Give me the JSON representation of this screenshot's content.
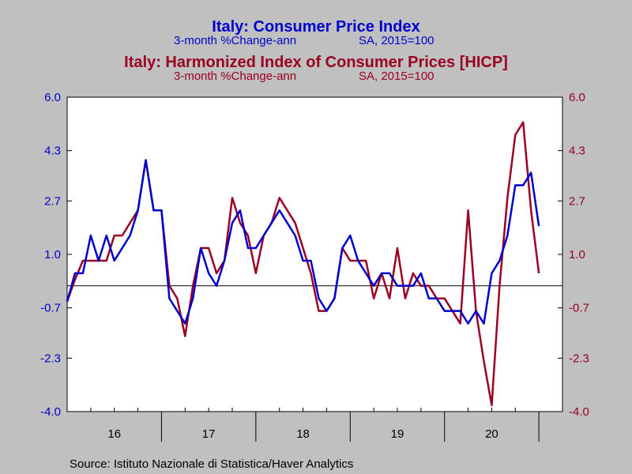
{
  "chart_data": {
    "type": "line",
    "titles": [
      {
        "title": "Italy: Consumer Price Index",
        "subtitle_left": "3-month %Change-ann",
        "subtitle_right": "SA, 2015=100",
        "color": "#0000cc"
      },
      {
        "title": "Italy: Harmonized Index of Consumer Prices [HICP]",
        "subtitle_left": "3-month %Change-ann",
        "subtitle_right": "SA, 2015=100",
        "color": "#990022"
      }
    ],
    "source": "Source:  Istituto Nazionale di Statistica/Haver Analytics",
    "ylim": [
      -4.0,
      6.0
    ],
    "y_ticks": [
      "6.0",
      "4.3",
      "2.7",
      "1.0",
      "-0.7",
      "-2.3",
      "-4.0"
    ],
    "zero_line": 0,
    "x_start": "2016-01",
    "x_end": "2021-03",
    "x_labels": [
      "16",
      "17",
      "18",
      "19",
      "20"
    ],
    "grid": false,
    "legend": "none",
    "series": [
      {
        "color": "#0000cc",
        "axis": "left",
        "values": [
          -0.5,
          0.4,
          0.4,
          1.6,
          0.8,
          1.6,
          0.8,
          1.2,
          1.6,
          2.4,
          4.0,
          2.4,
          2.4,
          -0.4,
          -0.8,
          -1.2,
          -0.4,
          1.2,
          0.4,
          0.0,
          0.8,
          2.0,
          2.4,
          1.2,
          1.2,
          1.6,
          2.0,
          2.4,
          2.0,
          1.6,
          0.8,
          0.8,
          -0.4,
          -0.8,
          -0.4,
          1.2,
          1.6,
          0.8,
          0.4,
          0.0,
          0.4,
          0.4,
          0.0,
          0.0,
          0.0,
          0.4,
          -0.4,
          -0.4,
          -0.8,
          -0.8,
          -0.8,
          -1.2,
          -0.8,
          -1.2,
          0.4,
          0.8,
          1.6,
          3.2,
          3.2,
          3.6,
          1.9
        ]
      },
      {
        "color": "#990022",
        "axis": "right",
        "values": [
          -0.5,
          0.2,
          0.8,
          0.8,
          0.8,
          0.8,
          1.6,
          1.6,
          2.0,
          2.4,
          4.0,
          2.4,
          2.4,
          0.0,
          -0.4,
          -1.6,
          0.0,
          1.2,
          1.2,
          0.4,
          0.8,
          2.8,
          2.0,
          1.6,
          0.4,
          1.6,
          2.0,
          2.8,
          2.4,
          2.0,
          1.2,
          0.4,
          -0.8,
          -0.8,
          -0.4,
          1.2,
          0.8,
          0.8,
          0.8,
          -0.4,
          0.4,
          -0.4,
          1.2,
          -0.4,
          0.4,
          0.0,
          0.0,
          -0.4,
          -0.4,
          -0.8,
          -1.2,
          2.4,
          -0.8,
          -2.4,
          -3.8,
          0.0,
          2.8,
          4.8,
          5.2,
          2.4,
          0.4
        ]
      }
    ]
  }
}
